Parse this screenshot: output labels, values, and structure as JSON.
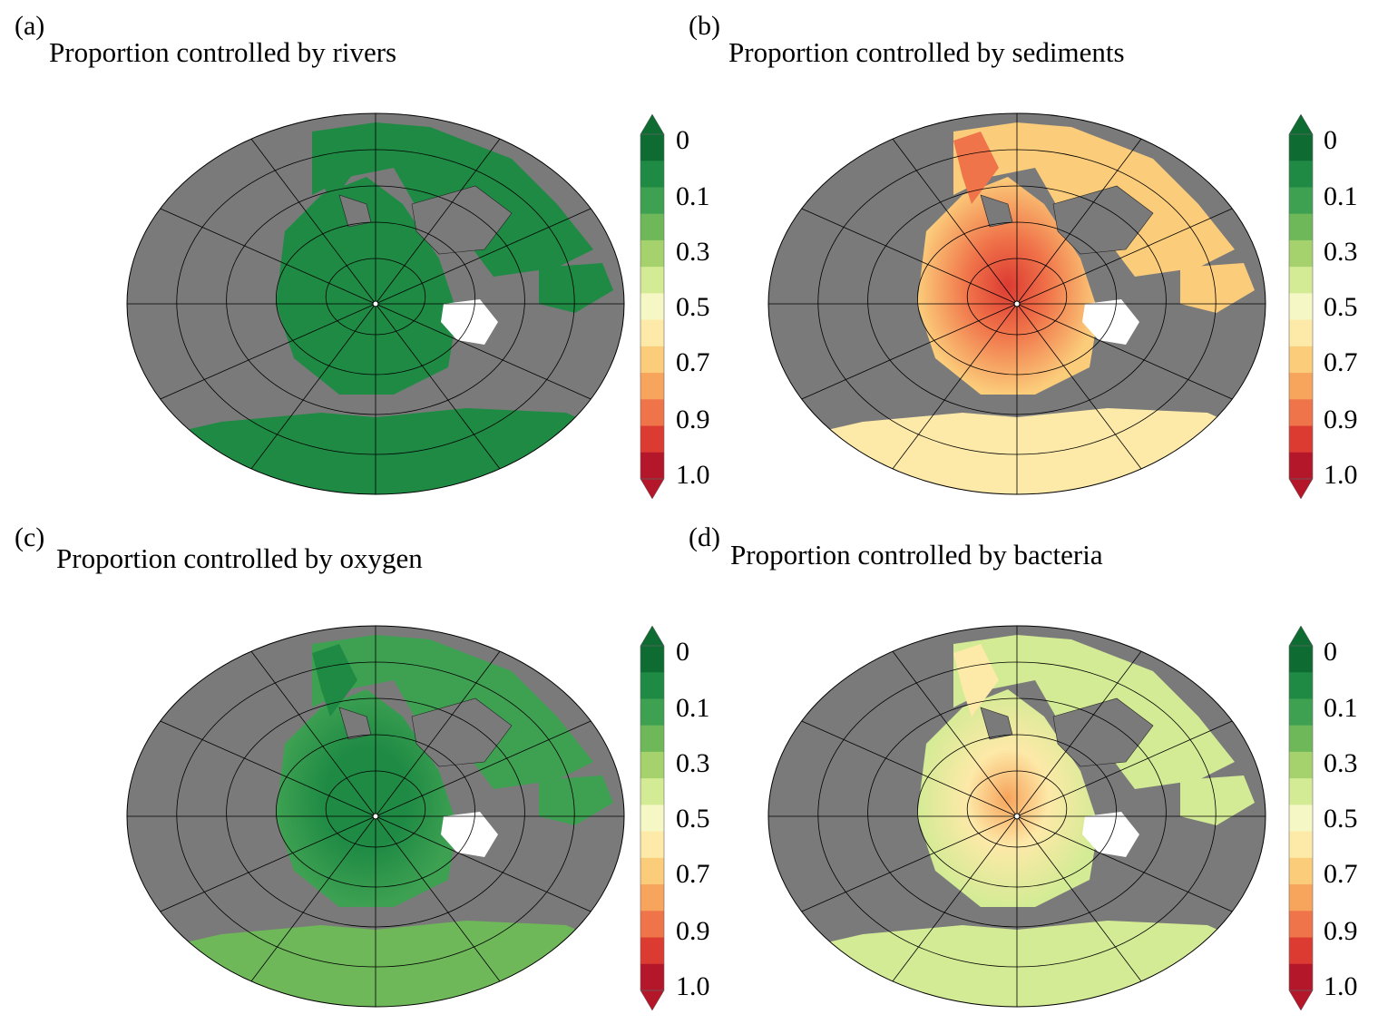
{
  "colors": {
    "land": "#7a7a7a",
    "sea_ice_gap": "#ffffff",
    "graticule": "#000000",
    "scale": [
      "#0e6b32",
      "#1e8a44",
      "#3ea152",
      "#6fb85a",
      "#a5d26c",
      "#d4eb95",
      "#f5f7c4",
      "#fde9a8",
      "#fbcc7a",
      "#f7a45c",
      "#f0744a",
      "#dc3b32",
      "#b5172a"
    ]
  },
  "colorbar_labels": [
    "0",
    "0.1",
    "0.3",
    "0.5",
    "0.7",
    "0.9",
    "1.0"
  ],
  "panels": [
    {
      "letter": "(a)",
      "title": "Proportion controlled by rivers",
      "field": "rivers"
    },
    {
      "letter": "(b)",
      "title": "Proportion controlled by sediments",
      "field": "sediments"
    },
    {
      "letter": "(c)",
      "title": "Proportion controlled by oxygen",
      "field": "oxygen"
    },
    {
      "letter": "(d)",
      "title": "Proportion controlled by bacteria",
      "field": "bacteria"
    }
  ]
}
